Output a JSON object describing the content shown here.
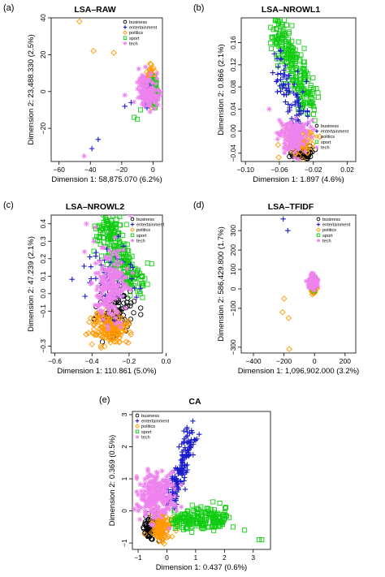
{
  "figure": {
    "categories": [
      "business",
      "entertainment",
      "politics",
      "sport",
      "tech"
    ],
    "colors": {
      "business": "#000000",
      "entertainment": "#1a1acc",
      "politics": "#ff9900",
      "sport": "#11cc11",
      "tech": "#ee82ee"
    },
    "markers": {
      "business": "circle",
      "entertainment": "plus",
      "politics": "diamond",
      "sport": "square",
      "tech": "asterisk"
    }
  },
  "chart_data": [
    {
      "type": "scatter",
      "panel": "(a)",
      "title": "LSA–RAW",
      "xlabel": "Dimension 1: 58,875.070 (6.2%)",
      "ylabel": "Dimension 2: 23,488.330 (2.5%)",
      "xlim": [
        -65,
        6
      ],
      "ylim": [
        -38,
        40
      ],
      "xticks": [
        -60,
        -40,
        -20,
        0
      ],
      "xtick_labels": [
        "−60",
        "−40",
        "−20",
        "0"
      ],
      "yticks": [
        -20,
        0,
        20,
        40
      ],
      "ytick_labels": [
        "−20",
        "0",
        "20",
        "40"
      ],
      "legend": "top-right",
      "clusters": {
        "tech": {
          "center": [
            -3,
            0
          ],
          "spread": [
            3.2,
            4.5
          ],
          "n": 140
        },
        "politics": {
          "center": [
            -2,
            5
          ],
          "spread": [
            1.6,
            4.5
          ],
          "n": 110
        },
        "sport": {
          "center": [
            1,
            0
          ],
          "spread": [
            1.2,
            3.5
          ],
          "n": 60
        },
        "business": {
          "center": [
            -2,
            2
          ],
          "spread": [
            1.5,
            3
          ],
          "n": 40
        },
        "entertainment": {
          "center": [
            -4,
            -2
          ],
          "spread": [
            1.8,
            3
          ],
          "n": 30
        }
      },
      "points": {
        "politics": [
          [
            -47,
            38
          ],
          [
            -38,
            22
          ],
          [
            -25,
            21
          ]
        ],
        "entertainment": [
          [
            -35,
            -26
          ],
          [
            -39,
            -31
          ],
          [
            -18,
            -8
          ],
          [
            -14,
            -6
          ]
        ],
        "sport": [
          [
            -12,
            -14
          ],
          [
            -10,
            -15
          ],
          [
            -8,
            -10
          ]
        ],
        "tech": [
          [
            -44,
            -35
          ],
          [
            -18,
            -2
          ],
          [
            -10,
            5
          ]
        ]
      }
    },
    {
      "type": "scatter",
      "panel": "(b)",
      "title": "LSA–NROWL1",
      "xlabel": "Dimension 1: 1.897 (4.6%)",
      "ylabel": "Dimension 2: 0.866 (2.1%)",
      "xlim": [
        -0.105,
        0.03
      ],
      "ylim": [
        -0.055,
        0.205
      ],
      "xticks": [
        -0.1,
        -0.06,
        -0.02,
        0.02
      ],
      "xtick_labels": [
        "−0.10",
        "−0.06",
        "−0.02",
        "0.02"
      ],
      "yticks": [
        -0.04,
        0.0,
        0.04,
        0.08,
        0.12,
        0.16
      ],
      "ytick_labels": [
        "−0.04",
        "0.00",
        "0.04",
        "0.08",
        "0.12",
        "0.16"
      ],
      "legend": "bottom-right",
      "clusters": {
        "sport": {
          "line": [
            [
              -0.063,
              0.19
            ],
            [
              -0.022,
              0.045
            ]
          ],
          "spread": [
            0.007,
            0.015
          ],
          "n": 230
        },
        "entertainment": {
          "line": [
            [
              -0.062,
              0.12
            ],
            [
              -0.033,
              0.02
            ]
          ],
          "spread": [
            0.006,
            0.012
          ],
          "n": 70
        },
        "tech": {
          "center": [
            -0.043,
            -0.01
          ],
          "spread": [
            0.008,
            0.014
          ],
          "n": 170
        },
        "politics": {
          "center": [
            -0.035,
            -0.02
          ],
          "spread": [
            0.008,
            0.012
          ],
          "n": 90
        },
        "business": {
          "center": [
            -0.033,
            -0.04
          ],
          "spread": [
            0.006,
            0.006
          ],
          "n": 70
        }
      },
      "points": {
        "sport": [
          [
            -0.065,
            0.2
          ],
          [
            -0.061,
            0.195
          ]
        ],
        "entertainment": [
          [
            -0.066,
            0.14
          ],
          [
            -0.058,
            0.13
          ],
          [
            -0.028,
            0.09
          ]
        ],
        "tech": [
          [
            -0.072,
            0.04
          ],
          [
            -0.06,
            0.02
          ],
          [
            -0.05,
            0.0
          ]
        ],
        "politics": [
          [
            -0.052,
            0.005
          ],
          [
            -0.047,
            -0.005
          ],
          [
            -0.05,
            -0.015
          ]
        ]
      }
    },
    {
      "type": "scatter",
      "panel": "(c)",
      "title": "LSA–NROWL2",
      "xlabel": "Dimension 1: 110.861 (5.0%)",
      "ylabel": "Dimension 2: 47.239 (2.1%)",
      "xlim": [
        -0.62,
        -0.02
      ],
      "ylim": [
        -0.34,
        0.45
      ],
      "xticks": [
        -0.6,
        -0.4,
        -0.2,
        0.0
      ],
      "xtick_labels": [
        "−0.6",
        "−0.4",
        "−0.2",
        "0.0"
      ],
      "yticks": [
        -0.3,
        -0.1,
        0.0,
        0.1,
        0.2,
        0.3,
        0.4
      ],
      "ytick_labels": [
        "−0.3",
        "−0.1",
        "0.0",
        "0.1",
        "0.2",
        "0.3",
        "0.4"
      ],
      "legend": "top-right",
      "clusters": {
        "sport": {
          "line": [
            [
              -0.34,
              0.42
            ],
            [
              -0.17,
              0.05
            ]
          ],
          "spread": [
            0.035,
            0.05
          ],
          "n": 250
        },
        "tech": {
          "center": [
            -0.3,
            0.04
          ],
          "spread": [
            0.045,
            0.1
          ],
          "n": 190
        },
        "politics": {
          "center": [
            -0.3,
            -0.2
          ],
          "spread": [
            0.05,
            0.045
          ],
          "n": 160
        },
        "business": {
          "center": [
            -0.27,
            -0.1
          ],
          "spread": [
            0.06,
            0.08
          ],
          "n": 100
        },
        "entertainment": {
          "center": [
            -0.3,
            0.08
          ],
          "spread": [
            0.06,
            0.1
          ],
          "n": 50
        }
      },
      "points": {
        "tech": [
          [
            -0.43,
            0.4
          ],
          [
            -0.38,
            0.38
          ],
          [
            -0.39,
            0.3
          ],
          [
            -0.44,
            0.24
          ]
        ],
        "entertainment": [
          [
            -0.14,
            0.03
          ],
          [
            -0.16,
            -0.02
          ],
          [
            -0.18,
            0.15
          ]
        ],
        "politics": [
          [
            -0.4,
            -0.29
          ],
          [
            -0.35,
            -0.31
          ],
          [
            -0.3,
            -0.28
          ]
        ]
      }
    },
    {
      "type": "scatter",
      "panel": "(d)",
      "title": "LSA–TFIDF",
      "xlabel": "Dimension 1: 1,096,902.000 (3.2%)",
      "ylabel": "Dimension 2: 586,429.800 (1.7%)",
      "xlim": [
        -480,
        270
      ],
      "ylim": [
        -330,
        380
      ],
      "xticks": [
        -400,
        -200,
        0,
        200
      ],
      "xtick_labels": [
        "−400",
        "−200",
        "0",
        "200"
      ],
      "yticks": [
        -300,
        -100,
        0,
        100,
        200,
        300
      ],
      "ytick_labels": [
        "−300",
        "−100",
        "0",
        "100",
        "200",
        "300"
      ],
      "legend": "top-right",
      "clusters": {
        "tech": {
          "center": [
            -12,
            35
          ],
          "spread": [
            14,
            18
          ],
          "n": 120
        },
        "politics": {
          "center": [
            -8,
            0
          ],
          "spread": [
            8,
            15
          ],
          "n": 80
        },
        "sport": {
          "center": [
            -4,
            30
          ],
          "spread": [
            6,
            12
          ],
          "n": 40
        },
        "business": {
          "center": [
            -4,
            40
          ],
          "spread": [
            6,
            10
          ],
          "n": 30
        },
        "entertainment": {
          "center": [
            -12,
            30
          ],
          "spread": [
            8,
            10
          ],
          "n": 25
        }
      },
      "points": {
        "entertainment": [
          [
            -205,
            360
          ],
          [
            -175,
            300
          ]
        ],
        "politics": [
          [
            -200,
            -50
          ],
          [
            -210,
            -120
          ],
          [
            -170,
            -150
          ],
          [
            -165,
            -310
          ]
        ],
        "tech": [
          [
            -55,
            40
          ],
          [
            -40,
            20
          ]
        ]
      }
    },
    {
      "type": "scatter",
      "panel": "(e)",
      "title": "CA",
      "xlabel": "Dimension 1: 0.437 (0.6%)",
      "ylabel": "Dimension 2: 0.369 (0.5%)",
      "xlim": [
        -1.2,
        3.6
      ],
      "ylim": [
        -1.2,
        3.1
      ],
      "xticks": [
        -1,
        0,
        1,
        2,
        3
      ],
      "xtick_labels": [
        "−1",
        "0",
        "1",
        "2",
        "3"
      ],
      "yticks": [
        -1,
        0,
        1,
        2,
        3
      ],
      "ytick_labels": [
        "−1",
        "0",
        "1",
        "2",
        "3"
      ],
      "legend": "top-left",
      "clusters": {
        "tech": {
          "center": [
            -0.35,
            0.45
          ],
          "spread": [
            0.35,
            0.35
          ],
          "n": 230
        },
        "entertainment": {
          "line": [
            [
              0.1,
              0.2
            ],
            [
              0.85,
              2.4
            ]
          ],
          "spread": [
            0.12,
            0.15
          ],
          "n": 150
        },
        "sport": {
          "line": [
            [
              0.3,
              -0.3
            ],
            [
              2.0,
              -0.2
            ]
          ],
          "spread": [
            0.12,
            0.17
          ],
          "n": 200
        },
        "politics": {
          "center": [
            -0.2,
            -0.5
          ],
          "spread": [
            0.2,
            0.25
          ],
          "n": 130
        },
        "business": {
          "center": [
            -0.55,
            -0.5
          ],
          "spread": [
            0.12,
            0.2
          ],
          "n": 90
        }
      },
      "points": {
        "entertainment": [
          [
            0.9,
            2.8
          ],
          [
            0.7,
            2.6
          ],
          [
            1.0,
            2.2
          ]
        ],
        "sport": [
          [
            3.2,
            -0.9
          ],
          [
            3.3,
            -0.9
          ],
          [
            2.3,
            -0.5
          ],
          [
            2.7,
            -0.6
          ]
        ],
        "tech": [
          [
            -0.9,
            0.1
          ],
          [
            -1.0,
            0.5
          ]
        ]
      }
    }
  ]
}
